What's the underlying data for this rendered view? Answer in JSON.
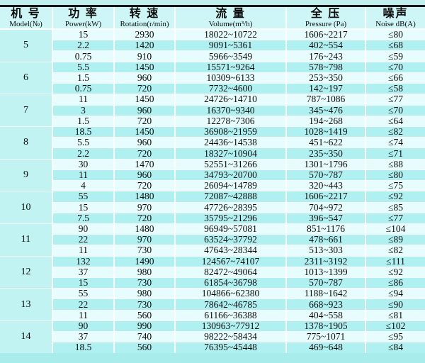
{
  "table": {
    "columns": [
      {
        "zh": "机 号",
        "en": "Model(№)"
      },
      {
        "zh": "功 率",
        "en": "Power(kW)"
      },
      {
        "zh": "转 速",
        "en": "Rotation(r/min)"
      },
      {
        "zh": "流 量",
        "en": "Volume(m³/h)"
      },
      {
        "zh": "全 压",
        "en": "Pressure (Pa)"
      },
      {
        "zh": "噪声",
        "en": "Noise dB(A)"
      }
    ],
    "groups": [
      {
        "model": "5",
        "rows": [
          [
            "15",
            "2930",
            "18022~10722",
            "1606~2217",
            "≤80"
          ],
          [
            "2.2",
            "1420",
            "9091~5361",
            "402~554",
            "≤68"
          ],
          [
            "0.75",
            "910",
            "5966~3549",
            "176~243",
            "≤59"
          ]
        ]
      },
      {
        "model": "6",
        "rows": [
          [
            "5.5",
            "1450",
            "15571~9264",
            "578~798",
            "≤70"
          ],
          [
            "1.5",
            "960",
            "10309~6133",
            "253~350",
            "≤66"
          ],
          [
            "0.75",
            "720",
            "7732~4600",
            "142~197",
            "≤58"
          ]
        ]
      },
      {
        "model": "7",
        "rows": [
          [
            "11",
            "1450",
            "24726~14710",
            "787~1086",
            "≤77"
          ],
          [
            "3",
            "960",
            "16370~9340",
            "345~476",
            "≤70"
          ],
          [
            "1.5",
            "720",
            "12278~7306",
            "194~268",
            "≤64"
          ]
        ]
      },
      {
        "model": "8",
        "rows": [
          [
            "18.5",
            "1450",
            "36908~21959",
            "1028~1419",
            "≤82"
          ],
          [
            "5.5",
            "960",
            "24436~14538",
            "451~622",
            "≤74"
          ],
          [
            "2.2",
            "720",
            "18327~10904",
            "235~350",
            "≤71"
          ]
        ]
      },
      {
        "model": "9",
        "rows": [
          [
            "30",
            "1470",
            "52551~31266",
            "1301~1796",
            "≤88"
          ],
          [
            "11",
            "960",
            "34793~20700",
            "570~787",
            "≤80"
          ],
          [
            "4",
            "720",
            "26094~14789",
            "320~443",
            "≤75"
          ]
        ]
      },
      {
        "model": "10",
        "rows": [
          [
            "55",
            "1480",
            "72087~42888",
            "1606~2217",
            "≤92"
          ],
          [
            "15",
            "970",
            "47726~28395",
            "704~972",
            "≤85"
          ],
          [
            "7.5",
            "720",
            "35795~21296",
            "396~547",
            "≤77"
          ]
        ]
      },
      {
        "model": "11",
        "rows": [
          [
            "90",
            "1480",
            "96949~57081",
            "851~1176",
            "≤104"
          ],
          [
            "22",
            "970",
            "63524~37792",
            "478~661",
            "≤89"
          ],
          [
            "11",
            "730",
            "47643~28344",
            "513~303",
            "≤82"
          ]
        ]
      },
      {
        "model": "12",
        "rows": [
          [
            "132",
            "1490",
            "124567~74107",
            "2311~3192",
            "≤111"
          ],
          [
            "37",
            "980",
            "82472~49064",
            "1013~1399",
            "≤92"
          ],
          [
            "15",
            "730",
            "61854~36798",
            "570~787",
            "≤86"
          ]
        ]
      },
      {
        "model": "13",
        "rows": [
          [
            "55",
            "980",
            "104866~62380",
            "1188~1642",
            "≤94"
          ],
          [
            "22",
            "730",
            "78642~46785",
            "668~923",
            "≤90"
          ],
          [
            "11",
            "560",
            "61166~36388",
            "404~558",
            "≤81"
          ]
        ]
      },
      {
        "model": "14",
        "rows": [
          [
            "90",
            "990",
            "130963~77912",
            "1378~1905",
            "≤102"
          ],
          [
            "37",
            "740",
            "98222~58434",
            "775~1071",
            "≤95"
          ],
          [
            "18.5",
            "560",
            "76395~45448",
            "469~648",
            "≤84"
          ]
        ]
      }
    ]
  },
  "colors": {
    "row_light": "#e7fcfc",
    "row_cyan": "#aff0f0",
    "model_cell": "#c2f3f3",
    "header_bg": "#cff6f6",
    "grid_line": "#fbffff",
    "top_strip": "#bff0ee",
    "rule": "#151515",
    "bottom_strip": "#a9ecec",
    "bottom_edge": "#7fd6d6",
    "text": "#0b0b0b"
  }
}
